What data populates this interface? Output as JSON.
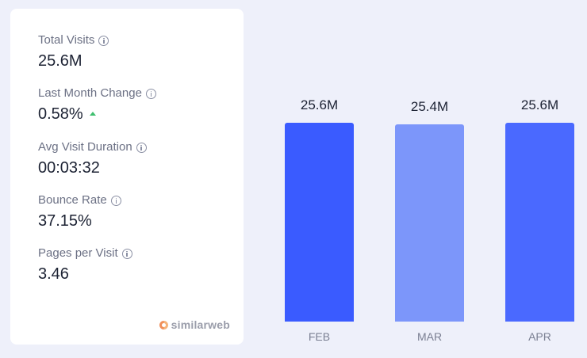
{
  "metrics": {
    "total_visits": {
      "label": "Total Visits",
      "value": "25.6M"
    },
    "last_month_change": {
      "label": "Last Month Change",
      "value": "0.58%",
      "trend": "up",
      "trend_color": "#3fbf6f"
    },
    "avg_visit_duration": {
      "label": "Avg Visit Duration",
      "value": "00:03:32"
    },
    "bounce_rate": {
      "label": "Bounce Rate",
      "value": "37.15%"
    },
    "pages_per_visit": {
      "label": "Pages per Visit",
      "value": "3.46"
    }
  },
  "brand": {
    "name": "similarweb",
    "icon": "similarweb-logo-icon"
  },
  "chart_data": {
    "type": "bar",
    "categories": [
      "FEB",
      "MAR",
      "APR"
    ],
    "values": [
      25.6,
      25.4,
      25.6
    ],
    "value_labels": [
      "25.6M",
      "25.4M",
      "25.6M"
    ],
    "colors": [
      "#3a5bff",
      "#7c96fa",
      "#4a69ff"
    ],
    "title": "",
    "xlabel": "",
    "ylabel": "",
    "grid": false
  }
}
